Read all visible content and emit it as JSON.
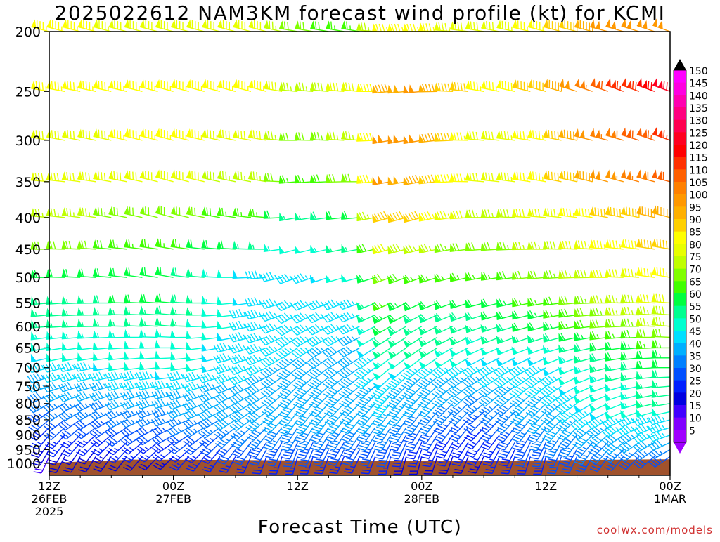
{
  "title": "2025022612 NAM3KM forecast wind profile (kt) for KCMI",
  "watermark": "coolwx.com/models",
  "chart_data": {
    "type": "wind-barb-time-height",
    "xlabel": "Forecast Time (UTC)",
    "ylabel": "",
    "pressure_levels": [
      1000,
      950,
      900,
      850,
      800,
      750,
      700,
      650,
      600,
      550,
      500,
      450,
      400,
      350,
      300,
      250,
      200
    ],
    "x_ticks": [
      {
        "hour": 0,
        "lines": [
          "12Z",
          "26FEB",
          "2025"
        ]
      },
      {
        "hour": 12,
        "lines": [
          "00Z",
          "27FEB"
        ]
      },
      {
        "hour": 24,
        "lines": [
          "12Z"
        ]
      },
      {
        "hour": 36,
        "lines": [
          "00Z",
          "28FEB"
        ]
      },
      {
        "hour": 48,
        "lines": [
          "12Z"
        ]
      },
      {
        "hour": 60,
        "lines": [
          "00Z",
          "1MAR"
        ]
      }
    ],
    "x_range_hours": [
      0,
      60
    ],
    "y_range_hpa": [
      1010,
      200
    ],
    "colorbar": {
      "units": "kt",
      "labels": [
        150,
        145,
        140,
        135,
        130,
        125,
        120,
        115,
        110,
        105,
        100,
        95,
        90,
        85,
        80,
        75,
        70,
        65,
        60,
        55,
        50,
        45,
        40,
        35,
        30,
        25,
        20,
        15,
        10,
        5
      ],
      "colors": [
        "#ff00ff",
        "#ff00e0",
        "#ff00b0",
        "#ff0080",
        "#ff0050",
        "#ff0020",
        "#ff0000",
        "#ff3000",
        "#ff6000",
        "#ff8000",
        "#ff9800",
        "#ffb000",
        "#ffd000",
        "#ffff00",
        "#e8ff00",
        "#c0ff00",
        "#80ff00",
        "#40ff00",
        "#00ff40",
        "#00ff90",
        "#00ffd0",
        "#00e0ff",
        "#00b0ff",
        "#0080ff",
        "#0050ff",
        "#0020ff",
        "#0000e0",
        "#4000ff",
        "#8000ff",
        "#a000ff"
      ],
      "top_arrow_color": "#000000"
    },
    "terrain_color": "#a0522d",
    "terrain_top_hpa": [
      [
        0,
        998
      ],
      [
        8,
        986
      ],
      [
        16,
        987
      ],
      [
        24,
        989
      ],
      [
        36,
        991
      ],
      [
        44,
        990
      ],
      [
        52,
        987
      ],
      [
        60,
        985
      ]
    ],
    "speed_keyframes": {
      "hours": [
        0,
        12,
        21,
        24,
        30,
        33,
        36,
        42,
        48,
        54,
        60
      ],
      "levels": [
        1000,
        950,
        900,
        850,
        800,
        750,
        700,
        650,
        600,
        550,
        500,
        450,
        400,
        350,
        300,
        250,
        200
      ],
      "speed_kt": [
        [
          15,
          20,
          20,
          20,
          20,
          20,
          15,
          20,
          25,
          25,
          30
        ],
        [
          20,
          25,
          30,
          30,
          30,
          30,
          25,
          25,
          30,
          35,
          35
        ],
        [
          25,
          30,
          35,
          35,
          35,
          35,
          30,
          25,
          35,
          40,
          45
        ],
        [
          30,
          35,
          40,
          40,
          40,
          40,
          35,
          30,
          40,
          45,
          45
        ],
        [
          35,
          40,
          40,
          40,
          40,
          45,
          40,
          35,
          40,
          50,
          55
        ],
        [
          40,
          45,
          40,
          40,
          40,
          45,
          40,
          40,
          45,
          50,
          55
        ],
        [
          45,
          50,
          45,
          40,
          40,
          50,
          45,
          45,
          45,
          55,
          60
        ],
        [
          50,
          50,
          45,
          45,
          40,
          55,
          55,
          50,
          50,
          60,
          65
        ],
        [
          55,
          55,
          45,
          45,
          45,
          60,
          55,
          55,
          60,
          70,
          75
        ],
        [
          55,
          60,
          45,
          45,
          45,
          65,
          60,
          60,
          65,
          75,
          80
        ],
        [
          60,
          60,
          45,
          45,
          50,
          70,
          65,
          65,
          70,
          80,
          85
        ],
        [
          70,
          65,
          55,
          50,
          55,
          80,
          75,
          70,
          75,
          85,
          90
        ],
        [
          75,
          70,
          65,
          55,
          60,
          90,
          90,
          75,
          80,
          90,
          95
        ],
        [
          80,
          80,
          75,
          65,
          70,
          100,
          95,
          80,
          85,
          100,
          110
        ],
        [
          80,
          85,
          80,
          70,
          75,
          100,
          100,
          80,
          85,
          105,
          115
        ],
        [
          85,
          85,
          85,
          75,
          80,
          95,
          100,
          85,
          90,
          110,
          125
        ],
        [
          85,
          80,
          80,
          70,
          65,
          85,
          85,
          80,
          85,
          100,
          100
        ]
      ],
      "direction_deg": [
        [
          200,
          220,
          190,
          190,
          200,
          190,
          190,
          200,
          190,
          210,
          230
        ],
        [
          210,
          230,
          210,
          200,
          210,
          200,
          200,
          210,
          200,
          220,
          240
        ],
        [
          220,
          240,
          220,
          210,
          215,
          210,
          210,
          220,
          210,
          230,
          250
        ],
        [
          230,
          250,
          230,
          215,
          220,
          215,
          215,
          225,
          220,
          240,
          255
        ],
        [
          240,
          255,
          235,
          220,
          225,
          220,
          220,
          230,
          225,
          245,
          260
        ],
        [
          250,
          260,
          240,
          225,
          230,
          225,
          225,
          235,
          230,
          250,
          265
        ],
        [
          255,
          265,
          245,
          230,
          235,
          230,
          230,
          240,
          240,
          255,
          270
        ],
        [
          260,
          270,
          250,
          235,
          240,
          235,
          235,
          245,
          250,
          260,
          270
        ],
        [
          265,
          275,
          255,
          240,
          245,
          240,
          240,
          250,
          255,
          265,
          275
        ],
        [
          265,
          275,
          260,
          245,
          250,
          245,
          245,
          255,
          260,
          270,
          275
        ],
        [
          270,
          280,
          265,
          250,
          255,
          250,
          250,
          260,
          265,
          270,
          280
        ],
        [
          270,
          280,
          270,
          255,
          260,
          255,
          255,
          265,
          270,
          275,
          280
        ],
        [
          275,
          285,
          275,
          260,
          265,
          255,
          255,
          270,
          275,
          280,
          285
        ],
        [
          275,
          285,
          280,
          265,
          270,
          260,
          260,
          275,
          280,
          285,
          285
        ],
        [
          280,
          285,
          280,
          270,
          275,
          260,
          260,
          275,
          280,
          285,
          290
        ],
        [
          280,
          285,
          285,
          275,
          275,
          265,
          265,
          280,
          285,
          290,
          290
        ],
        [
          285,
          285,
          285,
          280,
          280,
          270,
          270,
          280,
          285,
          285,
          290
        ]
      ]
    },
    "grid": false,
    "legend": "colorbar-right"
  }
}
